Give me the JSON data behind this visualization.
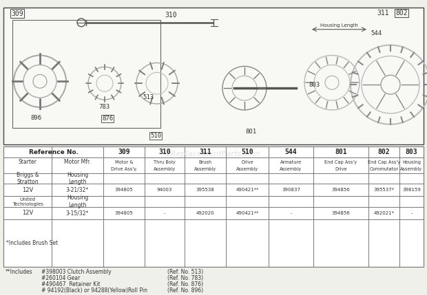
{
  "bg_color": "#f0f0eb",
  "watermark": "eReplacementParts.com",
  "ref_numbers": [
    "309",
    "310",
    "311",
    "510",
    "544",
    "801",
    "802",
    "803"
  ],
  "col_headers_line1": [
    "Motor &",
    "Thru Boly",
    "Brush",
    "Drive",
    "Armature",
    "End Cap Ass'y",
    "End Cap Ass'y",
    "Housing"
  ],
  "col_headers_line2": [
    "Drive Ass'y.",
    "Assembly",
    "Assembly",
    "Assembly",
    "Assembly",
    "Drive",
    "Commutator",
    "Assembly"
  ],
  "briggs_data": [
    "394805",
    "94003",
    "395538",
    "490421**",
    "390837",
    "394856",
    "395537*",
    "398159"
  ],
  "united_data": [
    "394805",
    "-",
    "492020",
    "490421**",
    "-",
    "394856",
    "492021*",
    "-"
  ],
  "footnote1": "*Includes Brush Set",
  "footnotes": [
    [
      "**Includes",
      "#398003 Clutch Assembly",
      "(Ref. No. 513)"
    ],
    [
      "",
      "#260104 Gear",
      "(Ref. No. 783)"
    ],
    [
      "",
      "#490467  Retainer Kit",
      "(Ref. No. 876)"
    ],
    [
      "",
      "# 94192(Black) or 94288(Yellow)Roll Pin",
      "(Ref. No. 896)"
    ]
  ],
  "line_color": "#555555",
  "text_color": "#333333",
  "col_starts": [
    5,
    75,
    150,
    210,
    268,
    328,
    390,
    455,
    535,
    580,
    615
  ]
}
